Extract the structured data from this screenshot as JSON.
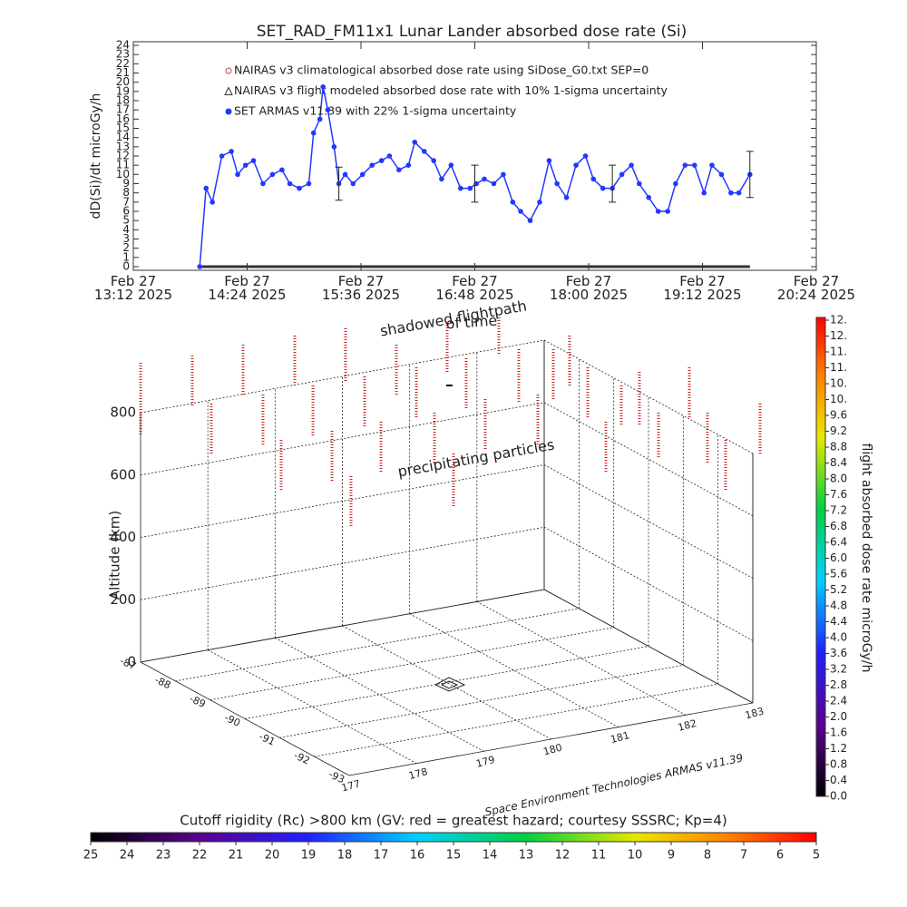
{
  "chart_data": [
    {
      "type": "line",
      "title": "SET_RAD_FM11x1  Lunar Lander absorbed dose rate (Si)",
      "ylabel": "dD(Si)/dt microGy/h",
      "xlim": [
        "2025-02-27T13:12",
        "2025-02-27T20:24"
      ],
      "xticks": [
        {
          "value": "2025-02-27T13:12",
          "label": "Feb 27\n13:12 2025"
        },
        {
          "value": "2025-02-27T14:24",
          "label": "Feb 27\n14:24 2025"
        },
        {
          "value": "2025-02-27T15:36",
          "label": "Feb 27\n15:36 2025"
        },
        {
          "value": "2025-02-27T16:48",
          "label": "Feb 27\n16:48 2025"
        },
        {
          "value": "2025-02-27T18:00",
          "label": "Feb 27\n18:00 2025"
        },
        {
          "value": "2025-02-27T19:12",
          "label": "Feb 27\n19:12 2025"
        },
        {
          "value": "2025-02-27T20:24",
          "label": "Feb 27\n20:24 2025"
        }
      ],
      "ylim": [
        0,
        24
      ],
      "yticks": [
        0,
        1,
        2,
        3,
        4,
        5,
        6,
        7,
        8,
        9,
        10,
        11,
        12,
        13,
        14,
        15,
        16,
        17,
        18,
        19,
        20,
        21,
        22,
        23,
        24
      ],
      "series": [
        {
          "name": "NAIRAS v3 climatological absorbed dose rate using SiDose_G0.txt SEP=0",
          "color": "#cc4444",
          "x": [
            "2025-02-27T13:54",
            "2025-02-27T19:42"
          ],
          "values": [
            0,
            0
          ]
        },
        {
          "name": "NAIRAS v3 flight modeled absorbed dose rate with 10% 1-sigma uncertainty",
          "color": "#333333",
          "x": [
            "2025-02-27T13:54",
            "2025-02-27T19:42"
          ],
          "values": [
            0,
            0
          ]
        },
        {
          "name": "SET ARMAS v11.39 with 22% 1-sigma uncertainty",
          "color": "#2238ff",
          "x": [
            "2025-02-27T13:54",
            "2025-02-27T13:58",
            "2025-02-27T14:02",
            "2025-02-27T14:08",
            "2025-02-27T14:14",
            "2025-02-27T14:18",
            "2025-02-27T14:23",
            "2025-02-27T14:28",
            "2025-02-27T14:34",
            "2025-02-27T14:40",
            "2025-02-27T14:46",
            "2025-02-27T14:51",
            "2025-02-27T14:57",
            "2025-02-27T15:03",
            "2025-02-27T15:06",
            "2025-02-27T15:10",
            "2025-02-27T15:12",
            "2025-02-27T15:15",
            "2025-02-27T15:19",
            "2025-02-27T15:22",
            "2025-02-27T15:26",
            "2025-02-27T15:31",
            "2025-02-27T15:37",
            "2025-02-27T15:43",
            "2025-02-27T15:49",
            "2025-02-27T15:54",
            "2025-02-27T16:00",
            "2025-02-27T16:06",
            "2025-02-27T16:10",
            "2025-02-27T16:16",
            "2025-02-27T16:22",
            "2025-02-27T16:27",
            "2025-02-27T16:33",
            "2025-02-27T16:39",
            "2025-02-27T16:45",
            "2025-02-27T16:49",
            "2025-02-27T16:54",
            "2025-02-27T17:00",
            "2025-02-27T17:06",
            "2025-02-27T17:12",
            "2025-02-27T17:17",
            "2025-02-27T17:23",
            "2025-02-27T17:29",
            "2025-02-27T17:35",
            "2025-02-27T17:40",
            "2025-02-27T17:46",
            "2025-02-27T17:52",
            "2025-02-27T17:58",
            "2025-02-27T18:03",
            "2025-02-27T18:09",
            "2025-02-27T18:15",
            "2025-02-27T18:21",
            "2025-02-27T18:27",
            "2025-02-27T18:32",
            "2025-02-27T18:38",
            "2025-02-27T18:44",
            "2025-02-27T18:50",
            "2025-02-27T18:55",
            "2025-02-27T19:01",
            "2025-02-27T19:07",
            "2025-02-27T19:13",
            "2025-02-27T19:18",
            "2025-02-27T19:24",
            "2025-02-27T19:30",
            "2025-02-27T19:35",
            "2025-02-27T19:42"
          ],
          "values": [
            0,
            8.5,
            7,
            12,
            12.5,
            10,
            11,
            11.5,
            9,
            10,
            10.5,
            9,
            8.5,
            9,
            14.5,
            16,
            19.5,
            17,
            13,
            9,
            10,
            9,
            10,
            11,
            11.5,
            12,
            10.5,
            11,
            13.5,
            12.5,
            11.5,
            9.5,
            11,
            8.5,
            8.5,
            9,
            9.5,
            9,
            10,
            7,
            6,
            5,
            7,
            11.5,
            9,
            7.5,
            11,
            12,
            9.5,
            8.5,
            8.5,
            10,
            11,
            9,
            7.5,
            6,
            6,
            9,
            11,
            11,
            8,
            11,
            10,
            8,
            8,
            10
          ]
        }
      ],
      "error_bars": {
        "x": [
          "2025-02-27T15:22",
          "2025-02-27T16:48",
          "2025-02-27T18:15",
          "2025-02-27T19:42"
        ],
        "values": [
          9,
          9,
          9,
          10
        ],
        "errors": [
          1.8,
          2,
          2,
          2.5
        ]
      }
    },
    {
      "type": "scatter3d",
      "annotations": [
        "shadowed flightpath",
        "of time",
        "precipitating particles",
        "Space Environment Technologies ARMAS v11.39"
      ],
      "zlabel": "Altitude (km)",
      "zlim": [
        0,
        800
      ],
      "zticks": [
        0,
        200,
        400,
        600,
        800
      ],
      "xlim": [
        177,
        183
      ],
      "xticks": [
        177,
        178,
        179,
        180,
        181,
        182,
        183
      ],
      "ylim": [
        -87,
        -93
      ],
      "yticks": [
        -87,
        -88,
        -89,
        -90,
        -91,
        -92,
        -93
      ],
      "colorbar": {
        "label": "flight absorbed dose rate microGy/h",
        "lim": [
          0,
          12
        ],
        "ticks": [
          {
            "value": 0,
            "label": "0.0"
          },
          0.4,
          0.8,
          1.2,
          1.6,
          {
            "value": 2,
            "label": "2.0"
          },
          2.4,
          2.8,
          3.2,
          3.6,
          {
            "value": 4,
            "label": "4.0"
          },
          4.4,
          4.8,
          5.2,
          5.6,
          {
            "value": 6,
            "label": "6.0"
          },
          6.4,
          6.8,
          7.2,
          7.6,
          {
            "value": 8,
            "label": "8.0"
          },
          8.4,
          8.8,
          9.2,
          9.6,
          {
            "value": 10,
            "label": "10."
          },
          {
            "value": 10.4,
            "label": "10."
          },
          {
            "value": 10.8,
            "label": "11."
          },
          {
            "value": 11.2,
            "label": "11."
          },
          {
            "value": 11.6,
            "label": "12."
          },
          {
            "value": 12,
            "label": "12."
          }
        ]
      },
      "rigidity_bar": {
        "label": "Cutoff rigidity (Rc) >800 km (GV: red = greatest hazard; courtesy SSSRC; Kp=4)",
        "lim": [
          25,
          5
        ],
        "ticks": [
          25,
          24,
          23,
          22,
          21,
          20,
          19,
          18,
          17,
          16,
          15,
          14,
          13,
          12,
          11,
          10,
          9,
          8,
          7,
          6,
          5
        ]
      }
    }
  ]
}
